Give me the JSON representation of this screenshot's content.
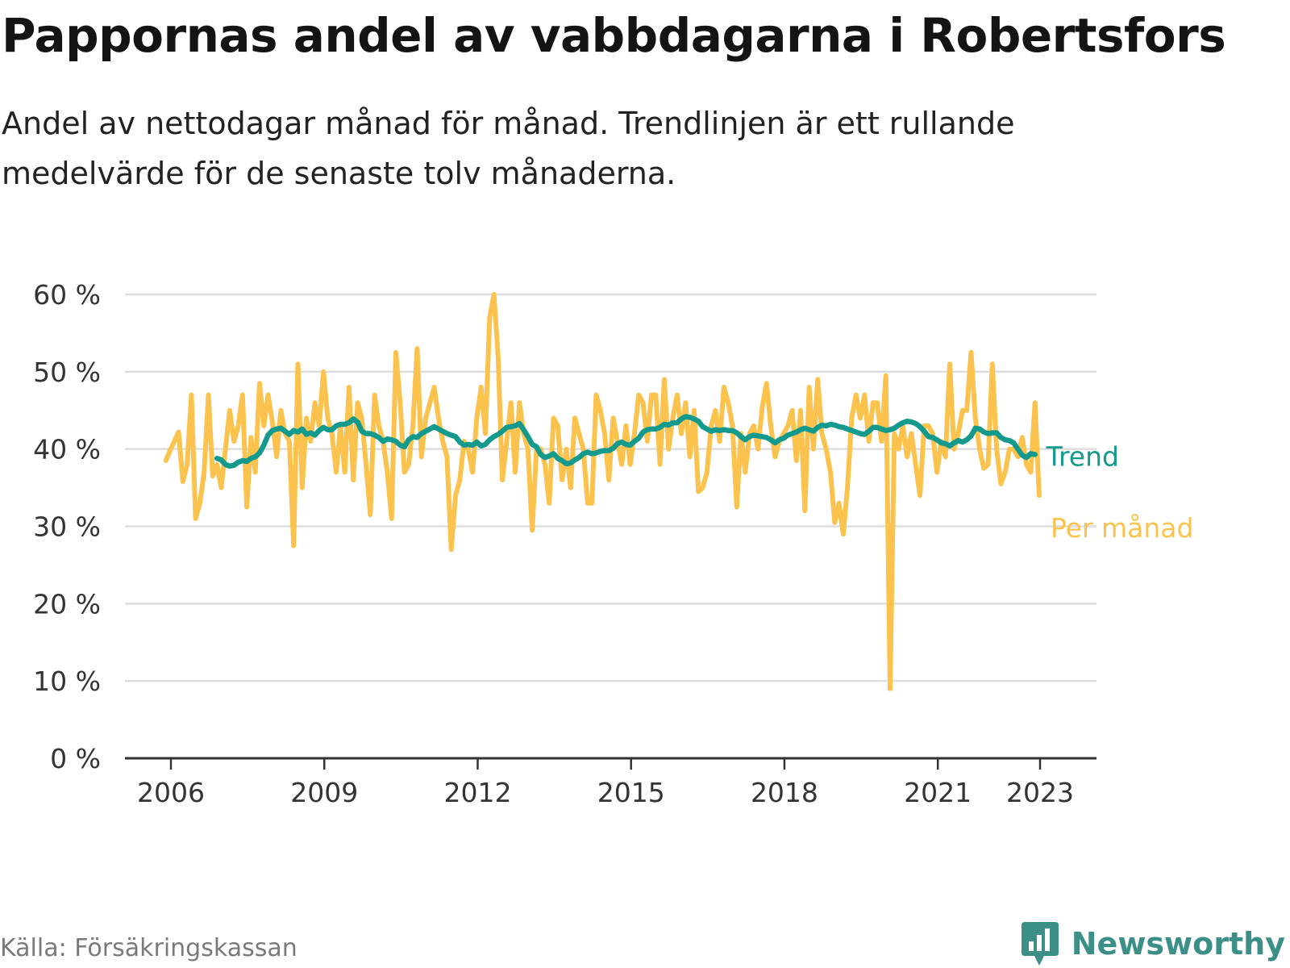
{
  "title": "Pappornas andel av vabbdagarna i Robertsfors",
  "subtitle": "Andel av nettodagar månad för månad. Trendlinjen är ett rullande medelvärde för de senaste tolv månaderna.",
  "source": "Källa: Försäkringskassan",
  "brand": "Newsworthy",
  "colors": {
    "trend": "#149a8c",
    "monthly": "#fbc34e",
    "grid": "#dddddd",
    "axis": "#333333",
    "brand": "#3c8f86"
  },
  "chart_data": {
    "type": "line",
    "title": "Pappornas andel av vabbdagarna i Robertsfors",
    "xlabel": "",
    "ylabel": "",
    "ylim": [
      0,
      60
    ],
    "xlim": [
      2005.7,
      2024.9
    ],
    "yticks": [
      0,
      10,
      20,
      30,
      40,
      50,
      60
    ],
    "ytick_labels": [
      "0 %",
      "10 %",
      "20 %",
      "30 %",
      "40 %",
      "50 %",
      "60 %"
    ],
    "xticks": [
      2006,
      2009,
      2012,
      2015,
      2018,
      2021,
      2023
    ],
    "xtick_labels": [
      "2006",
      "2009",
      "2012",
      "2015",
      "2018",
      "2021",
      "2023"
    ],
    "grid": true,
    "legend": "right-end labels",
    "series": [
      {
        "name": "Per månad",
        "x_start": 2005.9,
        "x_step": 0.0833333,
        "values": [
          38.5,
          39.8,
          41,
          42.2,
          35.8,
          38,
          47,
          31,
          33,
          37,
          47,
          36.5,
          38,
          35,
          40,
          45,
          41,
          43,
          47,
          32.5,
          41.5,
          37,
          48.5,
          43,
          47,
          43.5,
          39,
          45,
          42,
          41,
          27.5,
          51,
          35,
          44,
          41,
          46,
          43,
          50,
          44,
          42,
          37,
          43,
          37,
          48,
          36,
          46,
          44,
          38,
          31.5,
          47,
          43,
          41,
          37,
          31,
          52.5,
          46,
          37,
          38,
          43,
          53,
          39,
          44,
          46,
          48,
          44,
          41,
          39,
          27,
          34,
          36,
          41,
          40,
          37,
          44,
          48,
          42,
          57,
          60,
          52,
          36,
          41,
          46,
          37,
          46,
          42,
          40,
          29.5,
          40,
          40,
          38,
          33,
          44,
          43,
          36,
          40,
          35,
          44,
          42,
          40,
          33,
          33,
          47,
          45,
          42,
          36,
          44,
          41,
          38,
          43,
          38,
          42,
          47,
          46,
          41,
          47,
          47,
          38,
          49,
          40,
          44,
          47,
          42,
          46,
          39,
          45,
          34.5,
          35,
          37,
          43,
          45,
          41,
          48,
          46,
          43,
          32.5,
          42,
          37,
          42,
          43,
          40,
          45.5,
          48.5,
          43,
          39,
          41,
          42,
          43,
          45,
          38.5,
          45,
          32,
          48,
          40,
          49,
          42,
          40,
          37,
          30.5,
          33,
          29,
          35,
          44,
          47,
          44,
          47,
          41,
          46,
          46,
          41,
          49.5,
          9,
          42,
          40,
          43,
          39,
          42,
          38,
          34,
          43,
          43,
          42,
          37,
          41,
          39,
          51,
          40,
          42,
          45,
          45,
          52.5,
          44,
          40,
          37.5,
          38,
          51,
          40,
          35.5,
          37,
          40,
          40,
          39,
          41.5,
          38,
          37,
          46,
          34
        ]
      },
      {
        "name": "Trend",
        "x_start": 2006.9,
        "x_step": 0.0833333,
        "values": [
          38.8,
          38.6,
          38,
          37.8,
          37.9,
          38.3,
          38.5,
          38.4,
          38.8,
          39,
          39.5,
          40.5,
          41.8,
          42.4,
          42.6,
          42.7,
          42.3,
          41.9,
          42.4,
          42.2,
          42.6,
          41.9,
          42.1,
          41.8,
          42.4,
          42.8,
          42.5,
          42.5,
          43,
          43.2,
          43.2,
          43.4,
          43.9,
          43.5,
          42.3,
          42,
          42,
          41.8,
          41.5,
          41,
          41.3,
          41.2,
          41,
          40.5,
          40.3,
          41.2,
          41.6,
          41.5,
          42,
          42.3,
          42.6,
          42.9,
          42.6,
          42.3,
          42,
          41.8,
          41.6,
          40.9,
          40.5,
          40.6,
          40.5,
          40.9,
          40.4,
          40.6,
          41.2,
          41.6,
          41.9,
          42.3,
          42.8,
          42.9,
          43,
          43.3,
          42.5,
          41.6,
          40.6,
          40.3,
          39.3,
          38.9,
          39.1,
          39.4,
          38.8,
          38.5,
          38.1,
          38.2,
          38.6,
          38.9,
          39.4,
          39.6,
          39.4,
          39.5,
          39.7,
          39.8,
          39.8,
          40.1,
          40.7,
          40.9,
          40.6,
          40.5,
          41,
          41.4,
          42.2,
          42.5,
          42.6,
          42.6,
          42.8,
          43.2,
          43.1,
          43.4,
          43.4,
          43.9,
          44.2,
          44.1,
          43.9,
          43.6,
          42.9,
          42.6,
          42.3,
          42.5,
          42.4,
          42.5,
          42.4,
          42.4,
          42.1,
          41.6,
          41.2,
          41.6,
          41.8,
          41.7,
          41.6,
          41.5,
          41.2,
          40.8,
          41.2,
          41.4,
          41.8,
          42,
          42.2,
          42.5,
          42.7,
          42.5,
          42.3,
          42.8,
          43.1,
          43,
          43.2,
          43.1,
          42.9,
          42.8,
          42.6,
          42.4,
          42.2,
          42,
          41.9,
          42.3,
          42.8,
          42.8,
          42.6,
          42.4,
          42.5,
          42.7,
          43.1,
          43.4,
          43.6,
          43.5,
          43.3,
          42.9,
          42.3,
          41.6,
          41.5,
          41.2,
          40.8,
          40.7,
          40.4,
          40.8,
          41.1,
          40.9,
          41.2,
          41.7,
          42.7,
          42.6,
          42.2,
          42,
          42.1,
          42.1,
          41.5,
          41.2,
          41.1,
          40.8,
          40,
          39.2,
          38.9,
          39.4,
          39.3
        ]
      }
    ]
  }
}
